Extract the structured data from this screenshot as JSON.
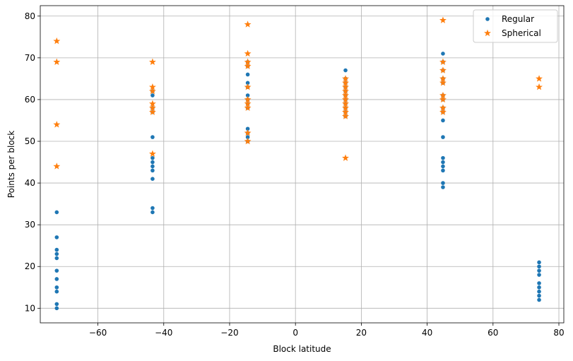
{
  "chart_data": {
    "type": "scatter",
    "xlabel": "Block latitude",
    "ylabel": "Points per block",
    "xlim": [
      -77.5,
      81.5
    ],
    "ylim": [
      6.5,
      82.5
    ],
    "xticks": [
      -60,
      -40,
      -20,
      0,
      20,
      40,
      60,
      80
    ],
    "yticks": [
      10,
      20,
      30,
      40,
      50,
      60,
      70,
      80
    ],
    "xtick_labels": [
      "−60",
      "−40",
      "−20",
      "0",
      "20",
      "40",
      "60",
      "80"
    ],
    "ytick_labels": [
      "10",
      "20",
      "30",
      "40",
      "50",
      "60",
      "70",
      "80"
    ],
    "grid": true,
    "legend_position": "top-right",
    "series": [
      {
        "name": "Regular",
        "marker": "circle",
        "color": "#1f77b4",
        "points": [
          [
            -72.5,
            10
          ],
          [
            -72.5,
            11
          ],
          [
            -72.5,
            14
          ],
          [
            -72.5,
            15
          ],
          [
            -72.5,
            17
          ],
          [
            -72.5,
            19
          ],
          [
            -72.5,
            22
          ],
          [
            -72.5,
            23
          ],
          [
            -72.5,
            24
          ],
          [
            -72.5,
            27
          ],
          [
            -72.5,
            33
          ],
          [
            -43.4,
            33
          ],
          [
            -43.4,
            34
          ],
          [
            -43.4,
            41
          ],
          [
            -43.4,
            43
          ],
          [
            -43.4,
            44
          ],
          [
            -43.4,
            45
          ],
          [
            -43.4,
            46
          ],
          [
            -43.4,
            51
          ],
          [
            -43.4,
            57
          ],
          [
            -43.4,
            58
          ],
          [
            -43.4,
            61
          ],
          [
            -43.4,
            62
          ],
          [
            -14.5,
            50
          ],
          [
            -14.5,
            51
          ],
          [
            -14.5,
            52
          ],
          [
            -14.5,
            53
          ],
          [
            -14.5,
            58
          ],
          [
            -14.5,
            59
          ],
          [
            -14.5,
            60
          ],
          [
            -14.5,
            61
          ],
          [
            -14.5,
            63
          ],
          [
            -14.5,
            64
          ],
          [
            -14.5,
            66
          ],
          [
            -14.5,
            68
          ],
          [
            -14.5,
            69
          ],
          [
            15.2,
            56
          ],
          [
            15.2,
            57
          ],
          [
            15.2,
            58
          ],
          [
            15.2,
            59
          ],
          [
            15.2,
            60
          ],
          [
            15.2,
            61
          ],
          [
            15.2,
            62
          ],
          [
            15.2,
            63
          ],
          [
            15.2,
            64
          ],
          [
            15.2,
            65
          ],
          [
            15.2,
            67
          ],
          [
            44.8,
            39
          ],
          [
            44.8,
            40
          ],
          [
            44.8,
            43
          ],
          [
            44.8,
            44
          ],
          [
            44.8,
            45
          ],
          [
            44.8,
            46
          ],
          [
            44.8,
            51
          ],
          [
            44.8,
            55
          ],
          [
            44.8,
            57
          ],
          [
            44.8,
            58
          ],
          [
            44.8,
            60
          ],
          [
            44.8,
            61
          ],
          [
            44.8,
            64
          ],
          [
            44.8,
            65
          ],
          [
            44.8,
            67
          ],
          [
            44.8,
            69
          ],
          [
            44.8,
            71
          ],
          [
            74.0,
            12
          ],
          [
            74.0,
            13
          ],
          [
            74.0,
            14
          ],
          [
            74.0,
            15
          ],
          [
            74.0,
            16
          ],
          [
            74.0,
            18
          ],
          [
            74.0,
            19
          ],
          [
            74.0,
            20
          ],
          [
            74.0,
            21
          ]
        ]
      },
      {
        "name": "Spherical",
        "marker": "star",
        "color": "#ff7f0e",
        "points": [
          [
            -72.5,
            44
          ],
          [
            -72.5,
            54
          ],
          [
            -72.5,
            69
          ],
          [
            -72.5,
            74
          ],
          [
            -43.4,
            47
          ],
          [
            -43.4,
            57
          ],
          [
            -43.4,
            58
          ],
          [
            -43.4,
            59
          ],
          [
            -43.4,
            62
          ],
          [
            -43.4,
            63
          ],
          [
            -43.4,
            69
          ],
          [
            -14.5,
            50
          ],
          [
            -14.5,
            52
          ],
          [
            -14.5,
            58
          ],
          [
            -14.5,
            59
          ],
          [
            -14.5,
            60
          ],
          [
            -14.5,
            63
          ],
          [
            -14.5,
            68
          ],
          [
            -14.5,
            69
          ],
          [
            -14.5,
            71
          ],
          [
            -14.5,
            78
          ],
          [
            15.2,
            46
          ],
          [
            15.2,
            56
          ],
          [
            15.2,
            57
          ],
          [
            15.2,
            58
          ],
          [
            15.2,
            59
          ],
          [
            15.2,
            60
          ],
          [
            15.2,
            61
          ],
          [
            15.2,
            62
          ],
          [
            15.2,
            63
          ],
          [
            15.2,
            64
          ],
          [
            15.2,
            65
          ],
          [
            44.8,
            57
          ],
          [
            44.8,
            58
          ],
          [
            44.8,
            60
          ],
          [
            44.8,
            61
          ],
          [
            44.8,
            64
          ],
          [
            44.8,
            65
          ],
          [
            44.8,
            67
          ],
          [
            44.8,
            69
          ],
          [
            44.8,
            79
          ],
          [
            74.0,
            63
          ],
          [
            74.0,
            65
          ]
        ]
      }
    ]
  }
}
